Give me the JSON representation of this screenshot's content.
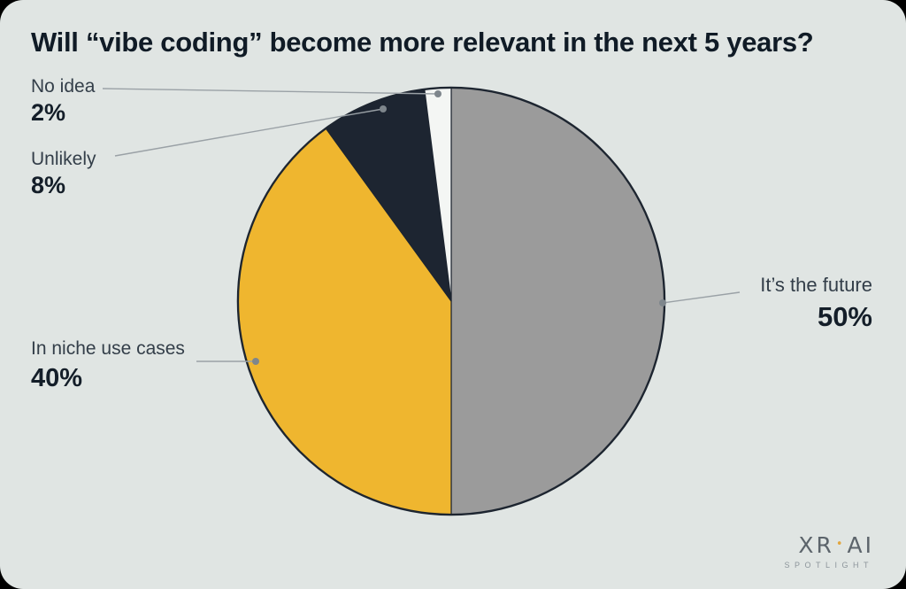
{
  "chart_data": {
    "type": "pie",
    "title": "Will “vibe coding” become more relevant in the next 5 years?",
    "direction": "clockwise",
    "start_angle": "12 o'clock",
    "legend_position": "callout-labels",
    "slices": [
      {
        "label": "It’s the future",
        "value": 50,
        "display": "50%",
        "color": "#9b9b9b"
      },
      {
        "label": "In niche use cases",
        "value": 40,
        "display": "40%",
        "color": "#efb62f"
      },
      {
        "label": "Unlikely",
        "value": 8,
        "display": "8%",
        "color": "#1d2531"
      },
      {
        "label": "No idea",
        "value": 2,
        "display": "2%",
        "color": "#f4f6f4"
      }
    ]
  },
  "branding": {
    "wordmark_left": "XR",
    "wordmark_dot": "•",
    "wordmark_right": "AI",
    "tagline": "SPOTLIGHT"
  },
  "colors": {
    "background": "#e0e5e3",
    "outer": "#000000",
    "title": "#101b26",
    "label": "#333e49",
    "pct": "#141e29",
    "line": "#9aa1a6",
    "dot": "#7e868c",
    "slice_stroke": "#1d2530",
    "logo": "#5c646b",
    "logo_dot": "#e2a63d",
    "tagline": "#8d959b"
  }
}
